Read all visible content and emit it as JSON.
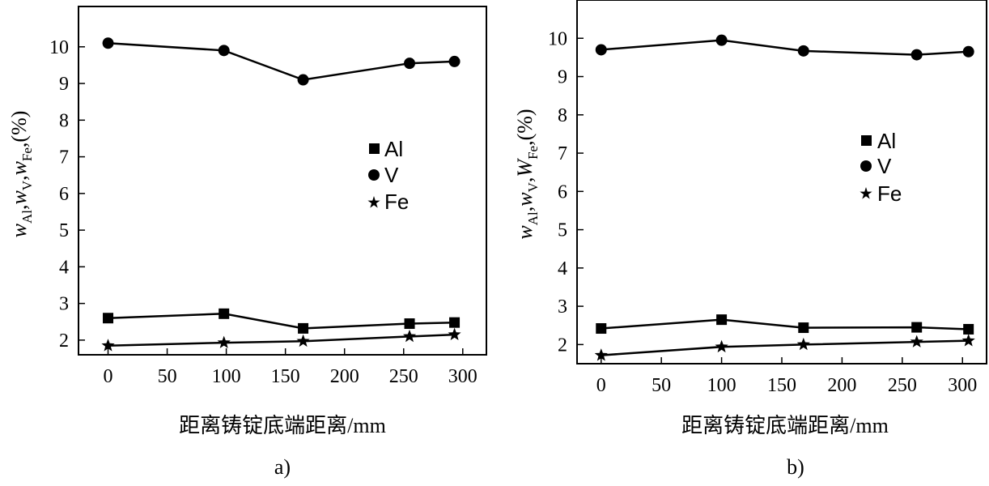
{
  "chart_data": [
    {
      "type": "line",
      "panel_label": "a)",
      "xlabel": "距离铸锭底端距离/mm",
      "ylabel": {
        "w1": "w",
        "s1": "Al",
        "sep1": ",",
        "w2": "w",
        "s2": "V",
        "sep2": ",",
        "w3": "w",
        "s3": "Fe",
        "tail": ",(%)"
      },
      "xlim": [
        -25,
        320
      ],
      "ylim": [
        1.6,
        11.1
      ],
      "xticks": [
        "0",
        "50",
        "100",
        "150",
        "200",
        "250",
        "300"
      ],
      "yticks": [
        "2",
        "3",
        "4",
        "5",
        "6",
        "7",
        "8",
        "9",
        "10"
      ],
      "grid": false,
      "legend_position": "middle-right",
      "series": [
        {
          "name": "Al",
          "marker": "square",
          "x": [
            0,
            98,
            165,
            255,
            293
          ],
          "values": [
            2.6,
            2.72,
            2.32,
            2.45,
            2.48
          ]
        },
        {
          "name": "V",
          "marker": "circle",
          "x": [
            0,
            98,
            165,
            255,
            293
          ],
          "values": [
            10.1,
            9.9,
            9.1,
            9.55,
            9.6
          ]
        },
        {
          "name": "Fe",
          "marker": "star",
          "x": [
            0,
            98,
            165,
            255,
            293
          ],
          "values": [
            1.85,
            1.93,
            1.97,
            2.1,
            2.15
          ]
        }
      ]
    },
    {
      "type": "line",
      "panel_label": "b)",
      "xlabel": "距离铸锭底端距离/mm",
      "ylabel": {
        "w1": "w",
        "s1": "Al",
        "sep1": ",",
        "w2": "w",
        "s2": "V",
        "sep2": ",",
        "w3": "W",
        "s3": "Fe",
        "tail": ",(%)"
      },
      "xlim": [
        -20,
        320
      ],
      "ylim": [
        1.5,
        11.0
      ],
      "xticks": [
        "0",
        "50",
        "100",
        "150",
        "200",
        "250",
        "300"
      ],
      "yticks": [
        "2",
        "3",
        "4",
        "5",
        "6",
        "7",
        "8",
        "9",
        "10"
      ],
      "grid": false,
      "legend_position": "middle-right",
      "series": [
        {
          "name": "Al",
          "marker": "square",
          "x": [
            0,
            100,
            168,
            262,
            305
          ],
          "values": [
            2.42,
            2.65,
            2.44,
            2.45,
            2.4
          ]
        },
        {
          "name": "V",
          "marker": "circle",
          "x": [
            0,
            100,
            168,
            262,
            305
          ],
          "values": [
            9.7,
            9.95,
            9.67,
            9.57,
            9.65
          ]
        },
        {
          "name": "Fe",
          "marker": "star",
          "x": [
            0,
            100,
            168,
            262,
            305
          ],
          "values": [
            1.72,
            1.94,
            2.0,
            2.07,
            2.1
          ]
        }
      ]
    }
  ]
}
